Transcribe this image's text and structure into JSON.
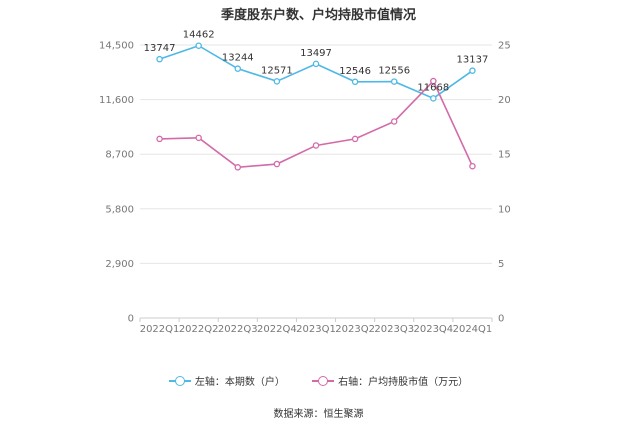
{
  "chart_data": {
    "type": "line",
    "title": "季度股东户数、户均持股市值情况",
    "categories": [
      "2022Q1",
      "2022Q2",
      "2022Q3",
      "2022Q4",
      "2023Q1",
      "2023Q2",
      "2023Q3",
      "2023Q4",
      "2024Q1"
    ],
    "series": [
      {
        "name": "左轴：本期数（户）",
        "axis": "left",
        "color": "#4fb8e6",
        "values": [
          13747,
          14462,
          13244,
          12571,
          13497,
          12546,
          12556,
          11668,
          13137
        ],
        "labels": [
          "13747",
          "14462",
          "13244",
          "12571",
          "13497",
          "12546",
          "12556",
          "11668",
          "13137"
        ]
      },
      {
        "name": "右轴：户均持股市值（万元）",
        "axis": "right",
        "color": "#d36aa9",
        "values": [
          16.4,
          16.5,
          13.8,
          14.1,
          15.8,
          16.4,
          18.0,
          21.7,
          13.9
        ]
      }
    ],
    "y_left": {
      "ylim": [
        0,
        14500
      ],
      "ticks": [
        "0",
        "2,900",
        "5,800",
        "8,700",
        "11,600",
        "14,500"
      ],
      "tick_values": [
        0,
        2900,
        5800,
        8700,
        11600,
        14500
      ]
    },
    "y_right": {
      "ylim": [
        0,
        25
      ],
      "ticks": [
        "0",
        "5",
        "10",
        "15",
        "20",
        "25"
      ],
      "tick_values": [
        0,
        5,
        10,
        15,
        20,
        25
      ]
    },
    "grid": true,
    "legend_position": "bottom"
  },
  "source_text": "数据来源：恒生聚源"
}
